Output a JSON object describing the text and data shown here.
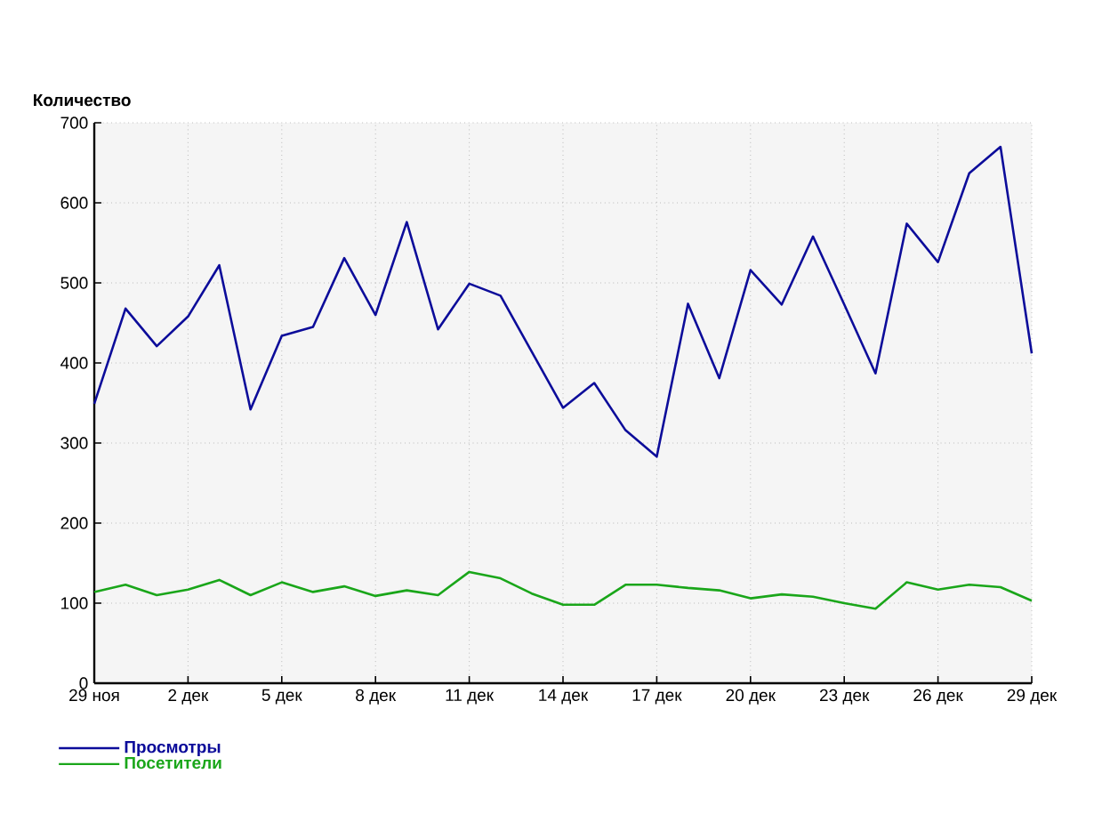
{
  "chart_data": {
    "type": "line",
    "ylabel": "Количество",
    "categories": [
      "29 ноя",
      null,
      null,
      "2 дек",
      null,
      null,
      "5 дек",
      null,
      null,
      "8 дек",
      null,
      null,
      "11 дек",
      null,
      null,
      "14 дек",
      null,
      null,
      "17 дек",
      null,
      null,
      "20 дек",
      null,
      null,
      "23 дек",
      null,
      null,
      "26 дек",
      null,
      null,
      "29 дек"
    ],
    "series": [
      {
        "name": "Просмотры",
        "color": "#0c0c9a",
        "values": [
          349,
          468,
          421,
          458,
          522,
          342,
          434,
          445,
          531,
          460,
          576,
          442,
          499,
          484,
          414,
          344,
          375,
          316,
          283,
          474,
          381,
          516,
          473,
          558,
          473,
          387,
          574,
          526,
          637,
          670,
          412
        ]
      },
      {
        "name": "Посетители",
        "color": "#1aa61a",
        "values": [
          114,
          123,
          110,
          117,
          129,
          110,
          126,
          114,
          121,
          109,
          116,
          110,
          139,
          131,
          112,
          98,
          98,
          123,
          123,
          119,
          116,
          106,
          111,
          108,
          100,
          93,
          126,
          117,
          123,
          120,
          103
        ]
      }
    ],
    "ylim": [
      0,
      700
    ],
    "yticks": [
      0,
      100,
      200,
      300,
      400,
      500,
      600,
      700
    ],
    "grid": true,
    "legend": "bottom left",
    "marker": "none",
    "line_style": "solid"
  }
}
